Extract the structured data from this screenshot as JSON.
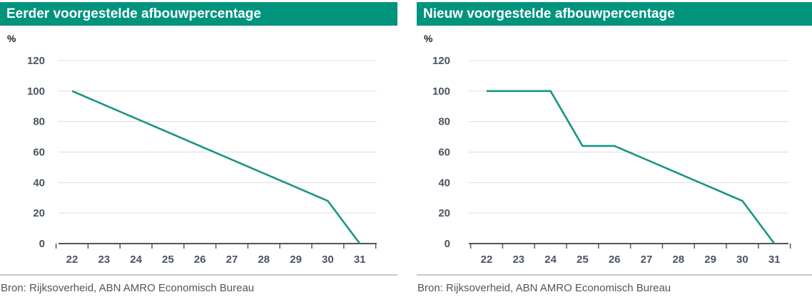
{
  "chart_data": [
    {
      "type": "line",
      "title": "Eerder voorgestelde afbouwpercentage",
      "ylabel": "%",
      "xlabel": "",
      "x": [
        22,
        23,
        24,
        25,
        26,
        27,
        28,
        29,
        30,
        31
      ],
      "xticks": [
        "22",
        "23",
        "24",
        "25",
        "26",
        "27",
        "28",
        "29",
        "30",
        "31"
      ],
      "ylim": [
        0,
        120
      ],
      "yticks": [
        "0",
        "20",
        "40",
        "60",
        "80",
        "100",
        "120"
      ],
      "grid": true,
      "color": "#1a9483",
      "points": [
        [
          22,
          100
        ],
        [
          30,
          28
        ],
        [
          31,
          0
        ]
      ],
      "source": "Bron: Rijksoverheid, ABN AMRO Economisch Bureau"
    },
    {
      "type": "line",
      "title": "Nieuw voorgestelde afbouwpercentage",
      "ylabel": "%",
      "xlabel": "",
      "x": [
        22,
        23,
        24,
        25,
        26,
        27,
        28,
        29,
        30,
        31
      ],
      "xticks": [
        "22",
        "23",
        "24",
        "25",
        "26",
        "27",
        "28",
        "29",
        "30",
        "31"
      ],
      "ylim": [
        0,
        120
      ],
      "yticks": [
        "0",
        "20",
        "40",
        "60",
        "80",
        "100",
        "120"
      ],
      "grid": true,
      "color": "#1a9483",
      "points": [
        [
          22,
          100
        ],
        [
          24,
          100
        ],
        [
          25,
          64
        ],
        [
          26,
          64
        ],
        [
          30,
          28
        ],
        [
          31,
          0
        ]
      ],
      "source": "Bron: Rijksoverheid, ABN AMRO Economisch Bureau"
    }
  ]
}
